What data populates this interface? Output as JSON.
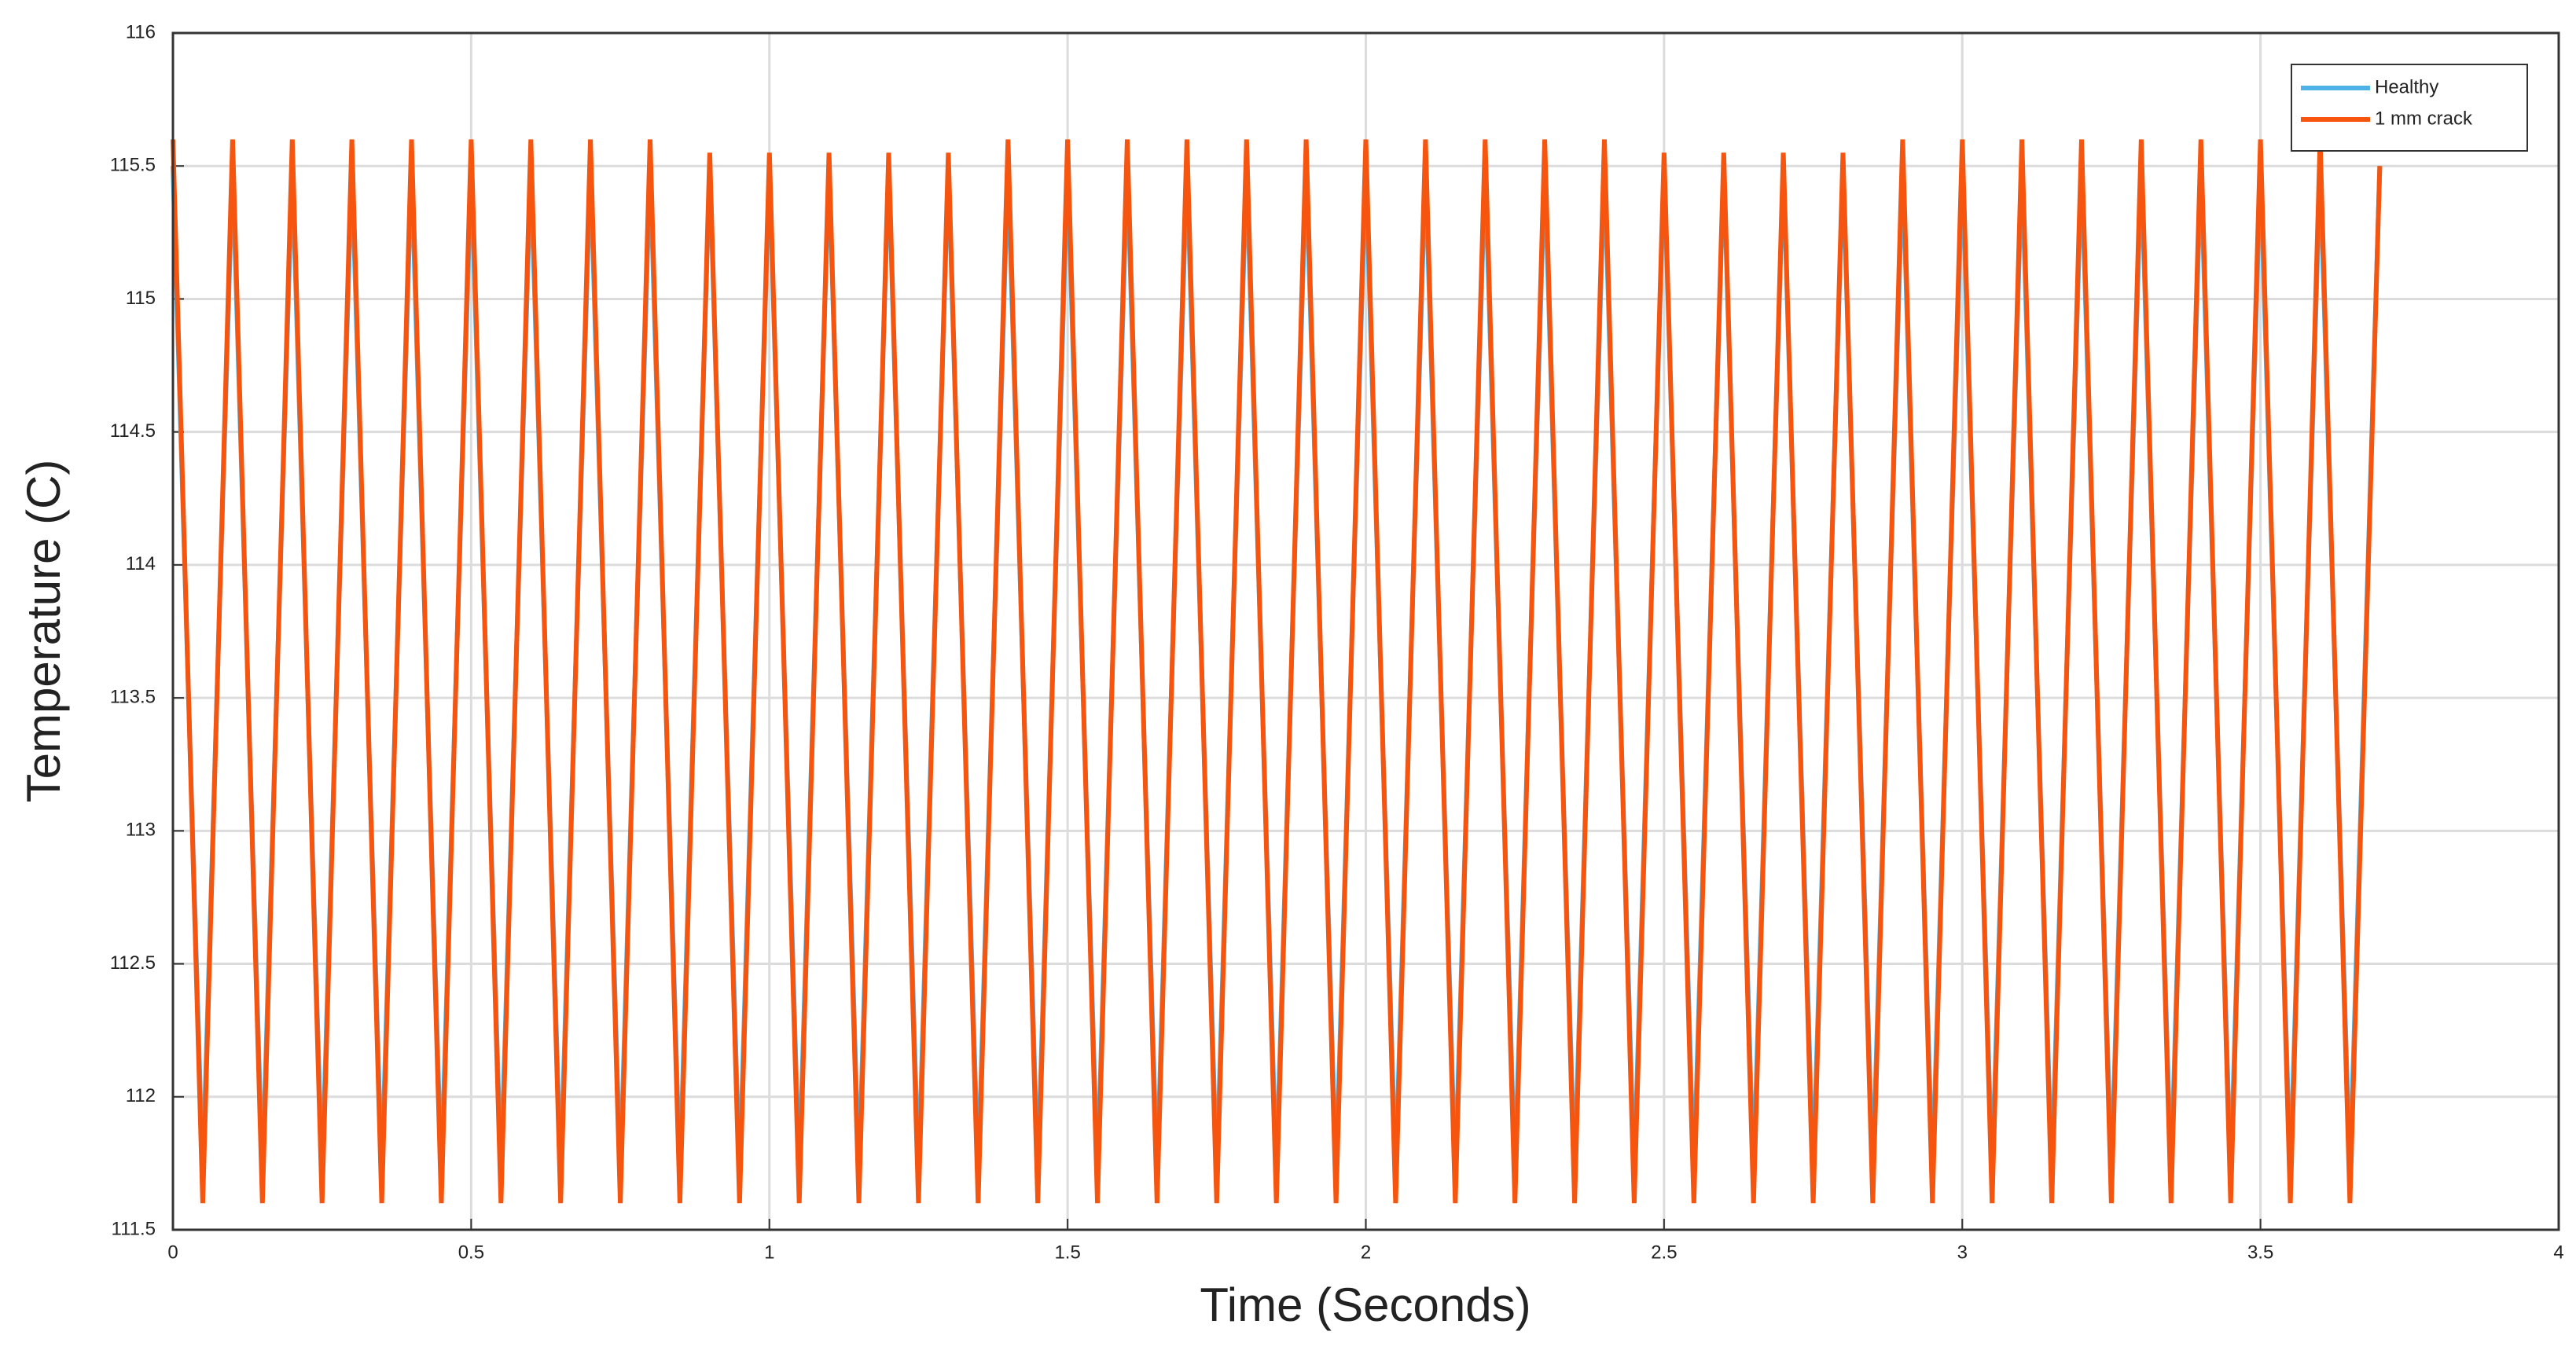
{
  "chart_data": {
    "type": "line",
    "xlabel": "Time (Seconds)",
    "ylabel": "Temperature (C)",
    "x": [
      0,
      0.05,
      0.1,
      0.15,
      0.2,
      0.25,
      0.3,
      0.35,
      0.4,
      0.45,
      0.5,
      0.55,
      0.6,
      0.65,
      0.7,
      0.75,
      0.8,
      0.85,
      0.9,
      0.95,
      1,
      1.05,
      1.1,
      1.15,
      1.2,
      1.25,
      1.3,
      1.35,
      1.4,
      1.45,
      1.5,
      1.55,
      1.6,
      1.65,
      1.7,
      1.75,
      1.8,
      1.85,
      1.9,
      1.95,
      2,
      2.05,
      2.1,
      2.15,
      2.2,
      2.25,
      2.3,
      2.35,
      2.4,
      2.45,
      2.5,
      2.55,
      2.6,
      2.65,
      2.7,
      2.75,
      2.8,
      2.85,
      2.9,
      2.95,
      3,
      3.05,
      3.1,
      3.15,
      3.2,
      3.25,
      3.3,
      3.35,
      3.4,
      3.45,
      3.5,
      3.55,
      3.6,
      3.65,
      3.7
    ],
    "series": [
      {
        "name": "Healthy",
        "color": "#4db3e6",
        "values": [
          115.5,
          111.7,
          115.5,
          111.7,
          115.5,
          111.7,
          115.5,
          111.7,
          115.5,
          111.7,
          115.5,
          111.7,
          115.5,
          111.7,
          115.5,
          111.7,
          115.5,
          111.7,
          115.5,
          111.7,
          115.5,
          111.7,
          115.5,
          111.7,
          115.5,
          111.7,
          115.5,
          111.7,
          115.5,
          111.7,
          115.5,
          111.7,
          115.5,
          111.7,
          115.5,
          111.7,
          115.5,
          111.7,
          115.5,
          111.7,
          115.5,
          111.7,
          115.5,
          111.7,
          115.5,
          111.7,
          115.5,
          111.7,
          115.5,
          111.7,
          115.5,
          111.7,
          115.5,
          111.7,
          115.5,
          111.7,
          115.5,
          111.7,
          115.5,
          111.7,
          115.5,
          111.7,
          115.5,
          111.7,
          115.5,
          111.7,
          115.5,
          111.7,
          115.5,
          111.7,
          115.5,
          111.7,
          115.5,
          111.7,
          115.5
        ]
      },
      {
        "name": "1 mm crack",
        "color": "#f5550f",
        "values": [
          115.6,
          111.6,
          115.6,
          111.6,
          115.6,
          111.6,
          115.6,
          111.6,
          115.6,
          111.6,
          115.6,
          111.6,
          115.6,
          111.6,
          115.6,
          111.6,
          115.6,
          111.6,
          115.55,
          111.6,
          115.55,
          111.6,
          115.55,
          111.6,
          115.55,
          111.6,
          115.55,
          111.6,
          115.6,
          111.6,
          115.6,
          111.6,
          115.6,
          111.6,
          115.6,
          111.6,
          115.6,
          111.6,
          115.6,
          111.6,
          115.6,
          111.6,
          115.6,
          111.6,
          115.6,
          111.6,
          115.6,
          111.6,
          115.6,
          111.6,
          115.55,
          111.6,
          115.55,
          111.6,
          115.55,
          111.6,
          115.55,
          111.6,
          115.6,
          111.6,
          115.6,
          111.6,
          115.6,
          111.6,
          115.6,
          111.6,
          115.6,
          111.6,
          115.6,
          111.6,
          115.6,
          111.6,
          115.6,
          111.6,
          115.5
        ]
      }
    ],
    "xlim": [
      0,
      4
    ],
    "xticks": [
      0,
      0.5,
      1,
      1.5,
      2,
      2.5,
      3,
      3.5,
      4
    ],
    "ylim": [
      111.5,
      116
    ],
    "yticks": [
      111.5,
      112,
      112.5,
      113,
      113.5,
      114,
      114.5,
      115,
      115.5,
      116
    ],
    "grid": true,
    "legend": "northeast"
  }
}
